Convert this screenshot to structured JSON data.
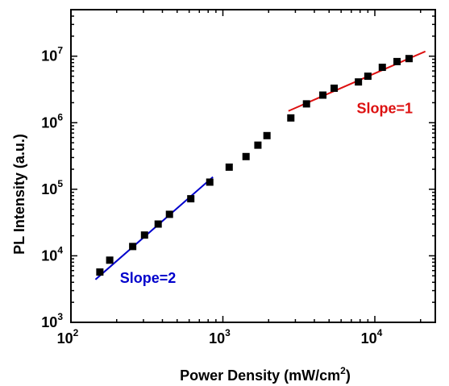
{
  "chart_data": {
    "type": "scatter",
    "x_scale": "log",
    "y_scale": "log",
    "xlim": [
      100,
      25000
    ],
    "ylim": [
      1000,
      50000000
    ],
    "xlabel_main": "Power Density (mW/cm",
    "xlabel_sup": "2",
    "xlabel_end": ")",
    "ylabel": "PL Intensity (a.u.)",
    "x_ticks": [
      {
        "value": 100,
        "base": "10",
        "exp": "2"
      },
      {
        "value": 1000,
        "base": "10",
        "exp": "3"
      },
      {
        "value": 10000,
        "base": "10",
        "exp": "4"
      }
    ],
    "y_ticks": [
      {
        "value": 1000,
        "base": "10",
        "exp": "3"
      },
      {
        "value": 10000,
        "base": "10",
        "exp": "4"
      },
      {
        "value": 100000,
        "base": "10",
        "exp": "5"
      },
      {
        "value": 1000000,
        "base": "10",
        "exp": "6"
      },
      {
        "value": 10000000,
        "base": "10",
        "exp": "7"
      }
    ],
    "marker_color": "#000000",
    "points": [
      {
        "x": 155,
        "y": 5700
      },
      {
        "x": 180,
        "y": 8600
      },
      {
        "x": 255,
        "y": 13800
      },
      {
        "x": 305,
        "y": 20500
      },
      {
        "x": 375,
        "y": 30000
      },
      {
        "x": 445,
        "y": 42000
      },
      {
        "x": 615,
        "y": 72000
      },
      {
        "x": 820,
        "y": 128000
      },
      {
        "x": 1100,
        "y": 215000
      },
      {
        "x": 1420,
        "y": 310000
      },
      {
        "x": 1700,
        "y": 460000
      },
      {
        "x": 1950,
        "y": 640000
      },
      {
        "x": 2800,
        "y": 1180000
      },
      {
        "x": 3550,
        "y": 1920000
      },
      {
        "x": 4550,
        "y": 2600000
      },
      {
        "x": 5400,
        "y": 3300000
      },
      {
        "x": 7800,
        "y": 4100000
      },
      {
        "x": 9000,
        "y": 5000000
      },
      {
        "x": 11200,
        "y": 6800000
      },
      {
        "x": 14000,
        "y": 8300000
      },
      {
        "x": 16800,
        "y": 9200000
      }
    ],
    "fits": [
      {
        "label": "Slope=2",
        "color": "#0000cc",
        "x": [
          145,
          860
        ],
        "y": [
          4400,
          153000
        ],
        "label_at": {
          "x": 210,
          "y": 3900
        }
      },
      {
        "label": "Slope=1",
        "color": "#dd1111",
        "x": [
          2700,
          21500
        ],
        "y": [
          1500000,
          11800000
        ],
        "label_at": {
          "x": 7600,
          "y": 1380000
        }
      }
    ]
  }
}
